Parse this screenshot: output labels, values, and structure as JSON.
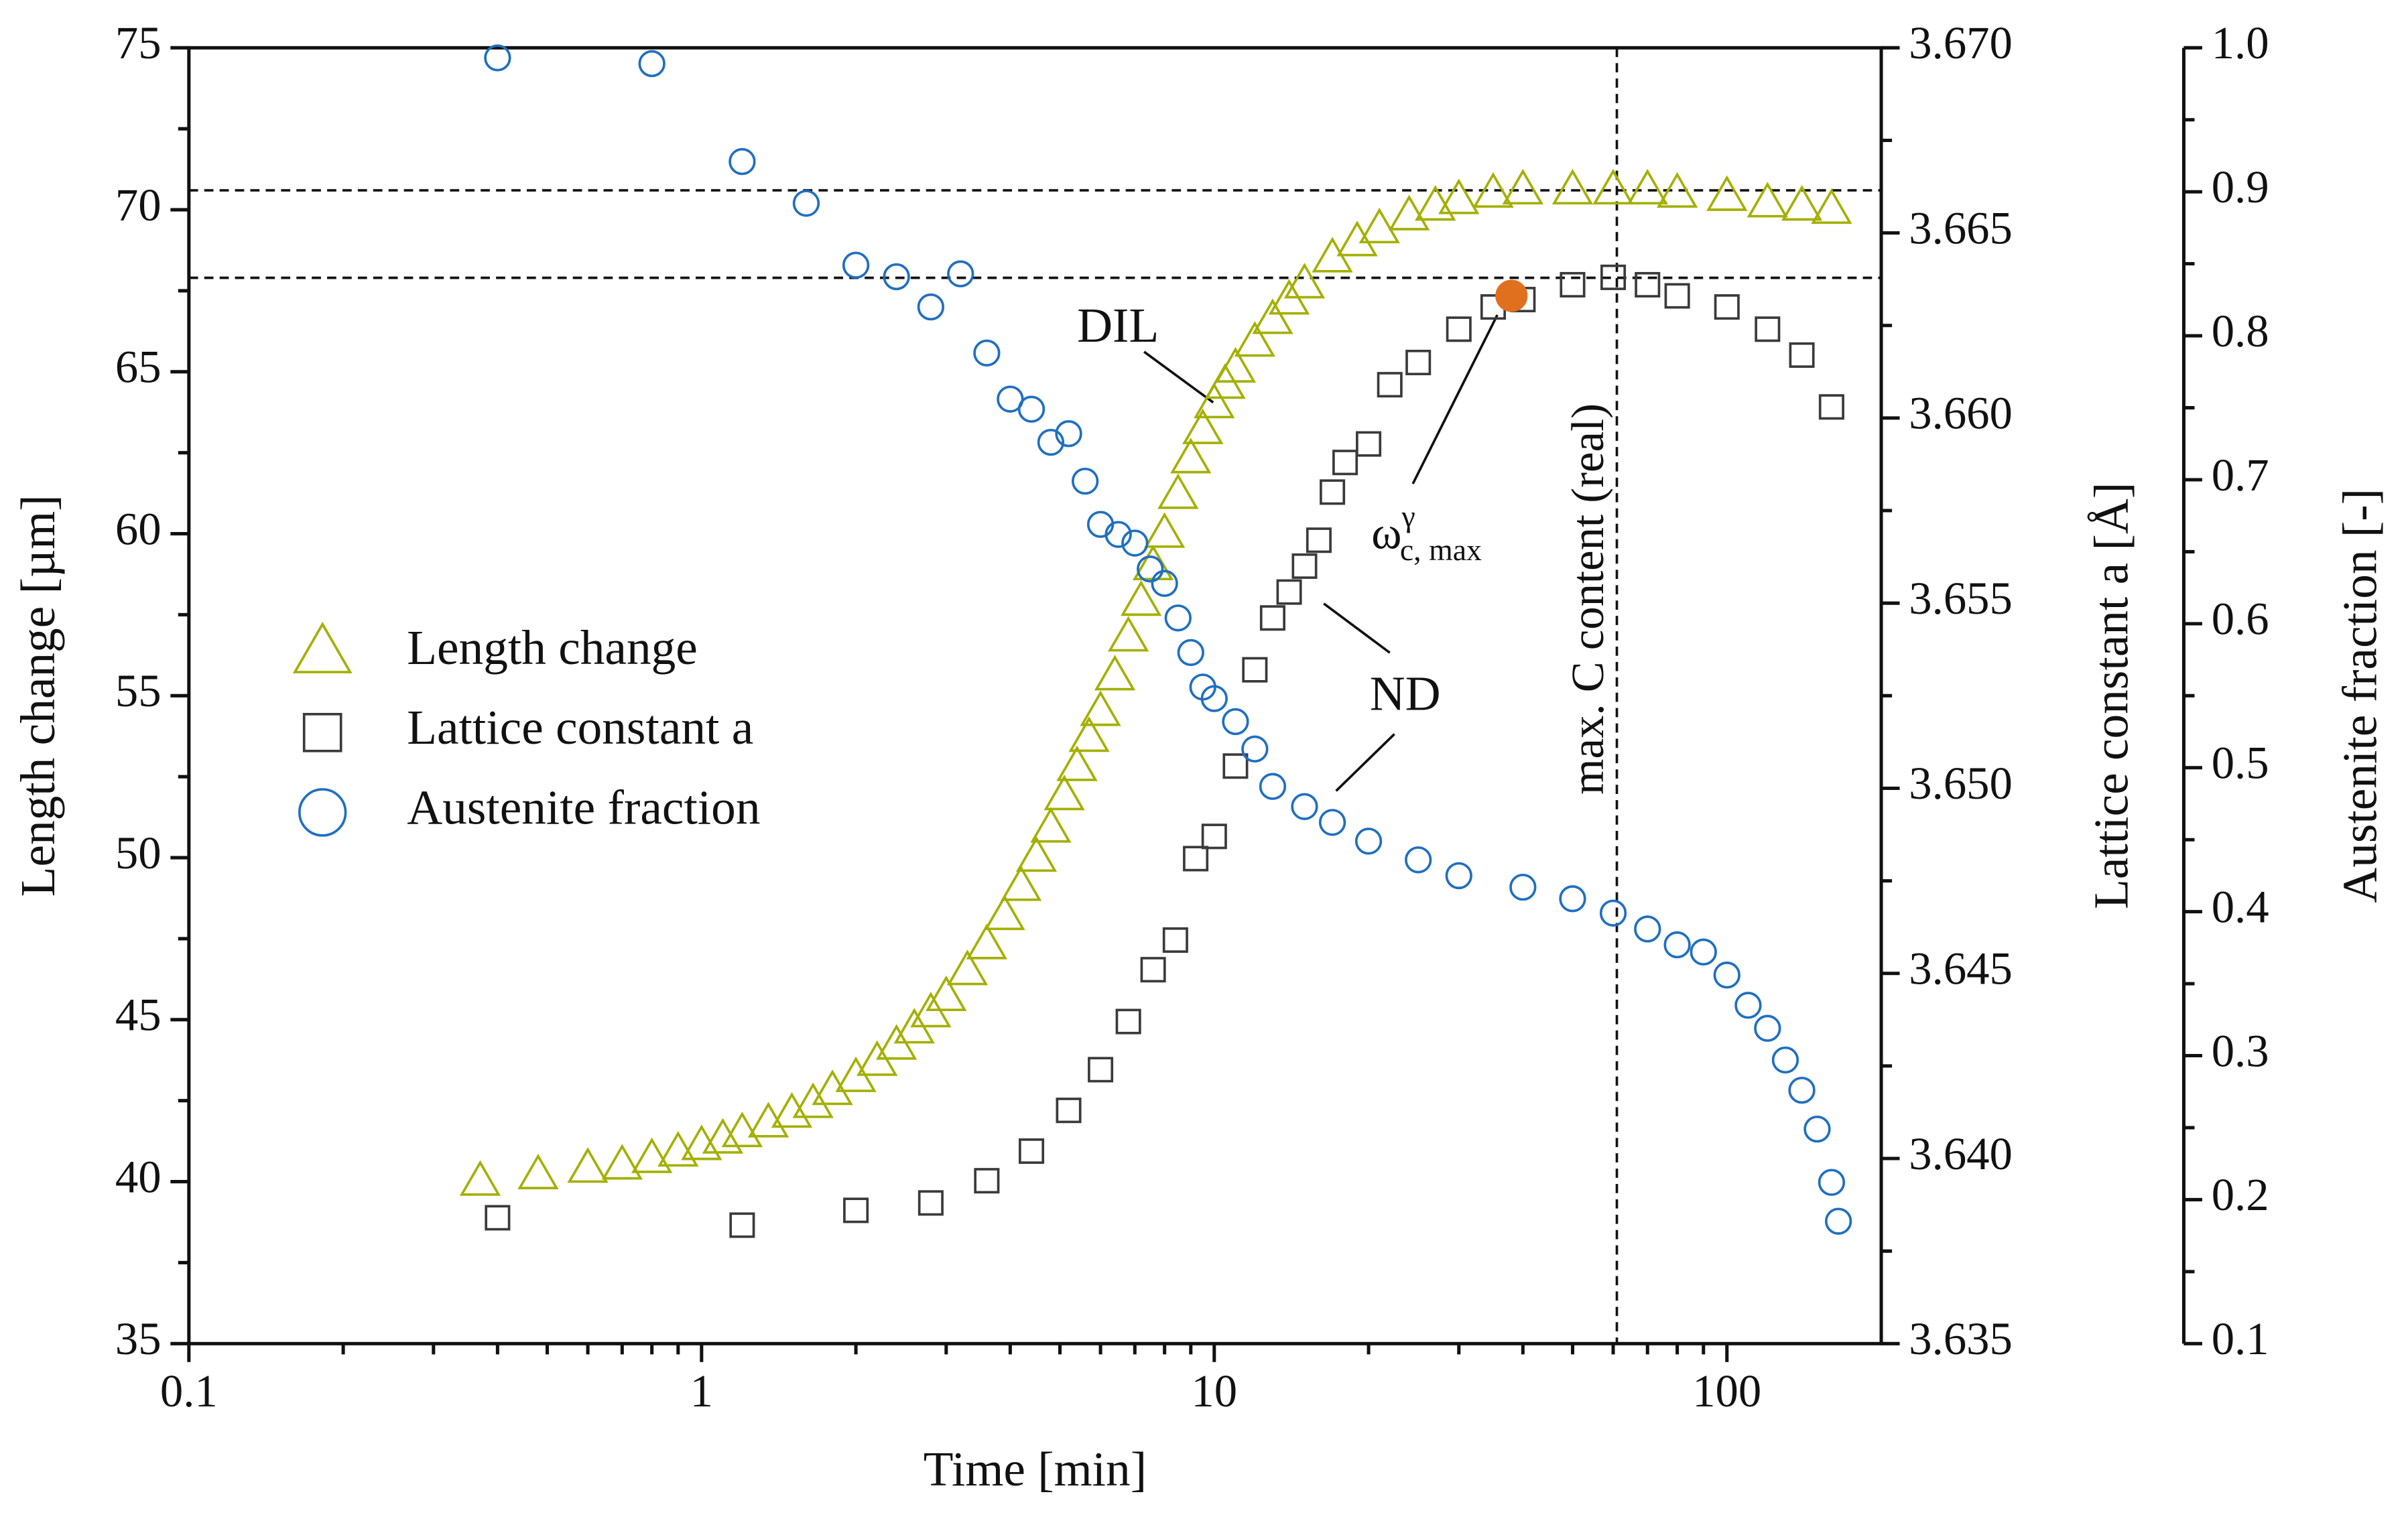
{
  "chart_data": {
    "type": "scatter",
    "x_label": "Time [min]",
    "y_label": "Length change [µm]",
    "y2_label": "Lattice constant a [Å]",
    "y3_label": "Austenite fraction [-]",
    "xscale": "log",
    "xlim": [
      0.1,
      200
    ],
    "xticks": [
      0.1,
      1,
      10,
      100
    ],
    "ylim": [
      35,
      75
    ],
    "yticks": [
      35,
      40,
      45,
      50,
      55,
      60,
      65,
      70,
      75
    ],
    "y2lim": [
      3.635,
      3.67
    ],
    "y2ticks": [
      3.635,
      {
        "value": 3.64,
        "label": "3.640"
      },
      3.645,
      {
        "value": 3.65,
        "label": "3.650"
      },
      3.655,
      {
        "value": 3.66,
        "label": "3.660"
      },
      3.665,
      {
        "value": 3.67,
        "label": "3.670"
      }
    ],
    "y3lim": [
      0.1,
      1.0
    ],
    "y3ticks": [
      0.1,
      0.2,
      0.3,
      0.4,
      0.5,
      0.6,
      0.7,
      0.8,
      0.9,
      {
        "value": 1.0,
        "label": "1.0"
      }
    ],
    "legend": "center left",
    "series": [
      {
        "name": "Length change",
        "color": "#a3b000",
        "marker": "triangle",
        "axis": "y",
        "x": [
          0.37,
          0.48,
          0.6,
          0.7,
          0.8,
          0.9,
          1.0,
          1.1,
          1.2,
          1.35,
          1.5,
          1.65,
          1.8,
          2.0,
          2.2,
          2.4,
          2.6,
          2.8,
          3.0,
          3.3,
          3.6,
          3.9,
          4.2,
          4.5,
          4.8,
          5.1,
          5.4,
          5.7,
          6.0,
          6.4,
          6.8,
          7.2,
          7.6,
          8.0,
          8.5,
          9.0,
          9.5,
          10,
          10.5,
          11,
          12,
          13,
          14,
          15,
          17,
          19,
          21,
          24,
          27,
          30,
          35,
          40,
          50,
          60,
          70,
          80,
          100,
          120,
          140,
          160
        ],
        "values": [
          40.0,
          40.2,
          40.4,
          40.5,
          40.7,
          40.9,
          41.1,
          41.3,
          41.5,
          41.8,
          42.1,
          42.4,
          42.8,
          43.2,
          43.7,
          44.2,
          44.7,
          45.2,
          45.7,
          46.5,
          47.3,
          48.2,
          49.1,
          50.0,
          50.9,
          51.9,
          52.8,
          53.7,
          54.5,
          55.6,
          56.8,
          57.9,
          59.0,
          60.0,
          61.2,
          62.3,
          63.2,
          64.0,
          64.6,
          65.1,
          65.9,
          66.6,
          67.2,
          67.7,
          68.5,
          69.0,
          69.4,
          69.8,
          70.1,
          70.3,
          70.5,
          70.6,
          70.6,
          70.6,
          70.6,
          70.5,
          70.4,
          70.2,
          70.1,
          70.0
        ]
      },
      {
        "name": "Lattice constant a",
        "color": "#3a3a3a",
        "marker": "square",
        "axis": "y2",
        "x": [
          0.4,
          1.2,
          2,
          2.8,
          3.6,
          4.4,
          5.2,
          6,
          6.8,
          7.6,
          8.4,
          9.2,
          10,
          11,
          12,
          13,
          14,
          15,
          16,
          17,
          18,
          20,
          22,
          25,
          30,
          35,
          40,
          50,
          60,
          70,
          80,
          100,
          120,
          140,
          160
        ],
        "values": [
          3.6384,
          3.6382,
          3.6386,
          3.6388,
          3.6394,
          3.6402,
          3.6413,
          3.6424,
          3.6437,
          3.6451,
          3.6459,
          3.6481,
          3.6487,
          3.6506,
          3.6532,
          3.6546,
          3.6553,
          3.656,
          3.6567,
          3.658,
          3.6588,
          3.6593,
          3.6609,
          3.6615,
          3.6624,
          3.663,
          3.6632,
          3.6636,
          3.6638,
          3.6636,
          3.6633,
          3.663,
          3.6624,
          3.6617,
          3.6603
        ]
      },
      {
        "name": "Austenite fraction",
        "color": "#1f6fc0",
        "marker": "circle",
        "axis": "y3",
        "x": [
          0.4,
          0.8,
          1.2,
          1.6,
          2,
          2.4,
          2.8,
          3.2,
          3.6,
          4,
          4.4,
          4.8,
          5.2,
          5.6,
          6,
          6.5,
          7,
          7.5,
          8,
          8.5,
          9,
          9.5,
          10,
          11,
          12,
          13,
          15,
          17,
          20,
          25,
          30,
          40,
          50,
          60,
          70,
          80,
          90,
          100,
          110,
          120,
          130,
          140,
          150,
          160,
          165
        ],
        "values": [
          0.993,
          0.989,
          0.921,
          0.892,
          0.849,
          0.841,
          0.82,
          0.843,
          0.788,
          0.756,
          0.749,
          0.726,
          0.732,
          0.699,
          0.669,
          0.662,
          0.656,
          0.638,
          0.628,
          0.604,
          0.58,
          0.556,
          0.548,
          0.532,
          0.513,
          0.487,
          0.473,
          0.462,
          0.449,
          0.436,
          0.425,
          0.417,
          0.409,
          0.399,
          0.388,
          0.377,
          0.372,
          0.356,
          0.335,
          0.319,
          0.297,
          0.276,
          0.249,
          0.212,
          0.185
        ]
      }
    ],
    "highlight": {
      "x": 38,
      "value": 3.6633,
      "axis": "y2",
      "color": "#e0701e"
    },
    "reference_lines": {
      "hlines": [
        70.6,
        67.9
      ],
      "vline": 61
    },
    "annotations": {
      "dil": "DIL",
      "nd": "ND",
      "omega": {
        "base": "ω",
        "sup": "γ",
        "sub": "c, max"
      },
      "vline_label": "max. C content (real)"
    }
  }
}
